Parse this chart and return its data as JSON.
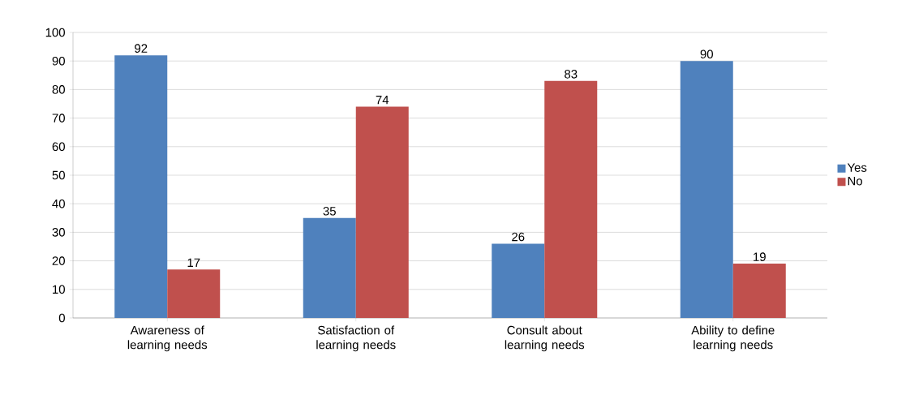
{
  "chart_data": {
    "type": "bar",
    "categories": [
      "Awareness of learning needs",
      "Satisfaction of learning needs",
      "Consult about learning needs",
      "Ability to define learning needs"
    ],
    "series": [
      {
        "name": "Yes",
        "color": "#4f81bd",
        "values": [
          92,
          35,
          26,
          90
        ]
      },
      {
        "name": "No",
        "color": "#c0504d",
        "values": [
          17,
          74,
          83,
          19
        ]
      }
    ],
    "ylim": [
      0,
      100
    ],
    "yticks": [
      0,
      10,
      20,
      30,
      40,
      50,
      60,
      70,
      80,
      90,
      100
    ],
    "grid": "y",
    "legend": "right",
    "data_labels": true
  }
}
